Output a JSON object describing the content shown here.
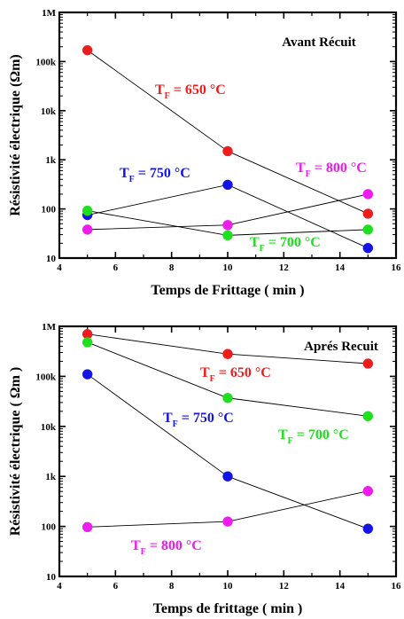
{
  "chart_data": [
    {
      "type": "line",
      "title": "Avant Récuit",
      "xlabel": "Temps de Frittage ( min )",
      "ylabel": "Résistivité électrique (Ωm)",
      "x_ticks": [
        "4",
        "6",
        "8",
        "10",
        "12",
        "14",
        "16"
      ],
      "y_ticks": [
        "10",
        "100",
        "1k",
        "10k",
        "100k",
        "1M"
      ],
      "xlim": [
        4,
        16
      ],
      "ylim": [
        10,
        1000000
      ],
      "yscale": "log",
      "x": [
        5,
        10,
        15
      ],
      "series": [
        {
          "name": "650 °C",
          "label_prefix": "T",
          "label_sub": "F",
          "label_eq": " = ",
          "color": "#ee1c1c",
          "values": [
            170000,
            1500,
            80
          ]
        },
        {
          "name": "750 °C",
          "label_prefix": "T",
          "label_sub": "F",
          "label_eq": " = ",
          "color": "#1414e6",
          "values": [
            75,
            310,
            16
          ]
        },
        {
          "name": "700 °C",
          "label_prefix": "T",
          "label_sub": "F",
          "label_eq": " = ",
          "color": "#1fe01f",
          "values": [
            92,
            29,
            38
          ]
        },
        {
          "name": "800 °C",
          "label_prefix": "T",
          "label_sub": "F",
          "label_eq": " = ",
          "color": "#ee1cee",
          "values": [
            38,
            47,
            200
          ]
        }
      ]
    },
    {
      "type": "line",
      "title": "Aprés Recuit",
      "xlabel": "Temps de frittage ( min )",
      "ylabel": "Résistivité électrique ( Ωm )",
      "x_ticks": [
        "4",
        "6",
        "8",
        "10",
        "12",
        "14",
        "16"
      ],
      "y_ticks": [
        "10",
        "100",
        "1k",
        "10k",
        "100k",
        "1M"
      ],
      "xlim": [
        4,
        16
      ],
      "ylim": [
        10,
        1000000
      ],
      "yscale": "log",
      "x": [
        5,
        10,
        15
      ],
      "series": [
        {
          "name": "650 °C",
          "label_prefix": "T",
          "label_sub": "F",
          "label_eq": " = ",
          "color": "#ee1c1c",
          "values": [
            700000,
            280000,
            180000
          ]
        },
        {
          "name": "700 °C",
          "label_prefix": "T",
          "label_sub": "F",
          "label_eq": " = ",
          "color": "#1fe01f",
          "values": [
            480000,
            37000,
            16000
          ]
        },
        {
          "name": "750 °C",
          "label_prefix": "T",
          "label_sub": "F",
          "label_eq": " = ",
          "color": "#1414e6",
          "values": [
            110000,
            1000,
            90
          ]
        },
        {
          "name": "800 °C",
          "label_prefix": "T",
          "label_sub": "F",
          "label_eq": " = ",
          "color": "#ee1cee",
          "values": [
            97,
            125,
            510
          ]
        }
      ]
    }
  ]
}
